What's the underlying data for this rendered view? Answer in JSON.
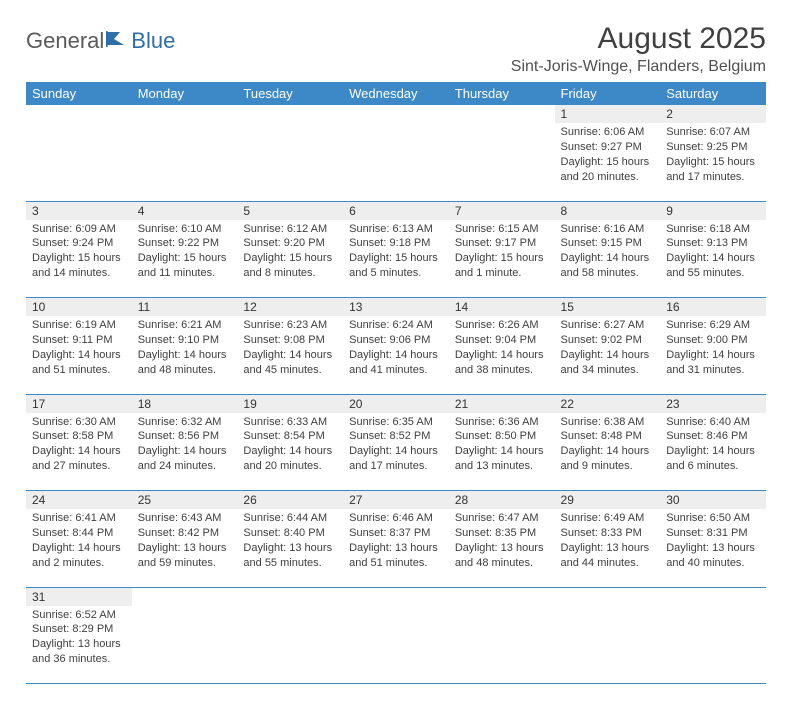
{
  "logo": {
    "part1": "General",
    "part2": "Blue"
  },
  "title": "August 2025",
  "location": "Sint-Joris-Winge, Flanders, Belgium",
  "header_bg": "#3d88c7",
  "weekdays": [
    "Sunday",
    "Monday",
    "Tuesday",
    "Wednesday",
    "Thursday",
    "Friday",
    "Saturday"
  ],
  "weeks": [
    [
      null,
      null,
      null,
      null,
      null,
      {
        "n": "1",
        "sr": "6:06 AM",
        "ss": "9:27 PM",
        "dl": "15 hours and 20 minutes."
      },
      {
        "n": "2",
        "sr": "6:07 AM",
        "ss": "9:25 PM",
        "dl": "15 hours and 17 minutes."
      }
    ],
    [
      {
        "n": "3",
        "sr": "6:09 AM",
        "ss": "9:24 PM",
        "dl": "15 hours and 14 minutes."
      },
      {
        "n": "4",
        "sr": "6:10 AM",
        "ss": "9:22 PM",
        "dl": "15 hours and 11 minutes."
      },
      {
        "n": "5",
        "sr": "6:12 AM",
        "ss": "9:20 PM",
        "dl": "15 hours and 8 minutes."
      },
      {
        "n": "6",
        "sr": "6:13 AM",
        "ss": "9:18 PM",
        "dl": "15 hours and 5 minutes."
      },
      {
        "n": "7",
        "sr": "6:15 AM",
        "ss": "9:17 PM",
        "dl": "15 hours and 1 minute."
      },
      {
        "n": "8",
        "sr": "6:16 AM",
        "ss": "9:15 PM",
        "dl": "14 hours and 58 minutes."
      },
      {
        "n": "9",
        "sr": "6:18 AM",
        "ss": "9:13 PM",
        "dl": "14 hours and 55 minutes."
      }
    ],
    [
      {
        "n": "10",
        "sr": "6:19 AM",
        "ss": "9:11 PM",
        "dl": "14 hours and 51 minutes."
      },
      {
        "n": "11",
        "sr": "6:21 AM",
        "ss": "9:10 PM",
        "dl": "14 hours and 48 minutes."
      },
      {
        "n": "12",
        "sr": "6:23 AM",
        "ss": "9:08 PM",
        "dl": "14 hours and 45 minutes."
      },
      {
        "n": "13",
        "sr": "6:24 AM",
        "ss": "9:06 PM",
        "dl": "14 hours and 41 minutes."
      },
      {
        "n": "14",
        "sr": "6:26 AM",
        "ss": "9:04 PM",
        "dl": "14 hours and 38 minutes."
      },
      {
        "n": "15",
        "sr": "6:27 AM",
        "ss": "9:02 PM",
        "dl": "14 hours and 34 minutes."
      },
      {
        "n": "16",
        "sr": "6:29 AM",
        "ss": "9:00 PM",
        "dl": "14 hours and 31 minutes."
      }
    ],
    [
      {
        "n": "17",
        "sr": "6:30 AM",
        "ss": "8:58 PM",
        "dl": "14 hours and 27 minutes."
      },
      {
        "n": "18",
        "sr": "6:32 AM",
        "ss": "8:56 PM",
        "dl": "14 hours and 24 minutes."
      },
      {
        "n": "19",
        "sr": "6:33 AM",
        "ss": "8:54 PM",
        "dl": "14 hours and 20 minutes."
      },
      {
        "n": "20",
        "sr": "6:35 AM",
        "ss": "8:52 PM",
        "dl": "14 hours and 17 minutes."
      },
      {
        "n": "21",
        "sr": "6:36 AM",
        "ss": "8:50 PM",
        "dl": "14 hours and 13 minutes."
      },
      {
        "n": "22",
        "sr": "6:38 AM",
        "ss": "8:48 PM",
        "dl": "14 hours and 9 minutes."
      },
      {
        "n": "23",
        "sr": "6:40 AM",
        "ss": "8:46 PM",
        "dl": "14 hours and 6 minutes."
      }
    ],
    [
      {
        "n": "24",
        "sr": "6:41 AM",
        "ss": "8:44 PM",
        "dl": "14 hours and 2 minutes."
      },
      {
        "n": "25",
        "sr": "6:43 AM",
        "ss": "8:42 PM",
        "dl": "13 hours and 59 minutes."
      },
      {
        "n": "26",
        "sr": "6:44 AM",
        "ss": "8:40 PM",
        "dl": "13 hours and 55 minutes."
      },
      {
        "n": "27",
        "sr": "6:46 AM",
        "ss": "8:37 PM",
        "dl": "13 hours and 51 minutes."
      },
      {
        "n": "28",
        "sr": "6:47 AM",
        "ss": "8:35 PM",
        "dl": "13 hours and 48 minutes."
      },
      {
        "n": "29",
        "sr": "6:49 AM",
        "ss": "8:33 PM",
        "dl": "13 hours and 44 minutes."
      },
      {
        "n": "30",
        "sr": "6:50 AM",
        "ss": "8:31 PM",
        "dl": "13 hours and 40 minutes."
      }
    ],
    [
      {
        "n": "31",
        "sr": "6:52 AM",
        "ss": "8:29 PM",
        "dl": "13 hours and 36 minutes."
      },
      null,
      null,
      null,
      null,
      null,
      null
    ]
  ],
  "labels": {
    "sunrise": "Sunrise:",
    "sunset": "Sunset:",
    "daylight": "Daylight:"
  }
}
